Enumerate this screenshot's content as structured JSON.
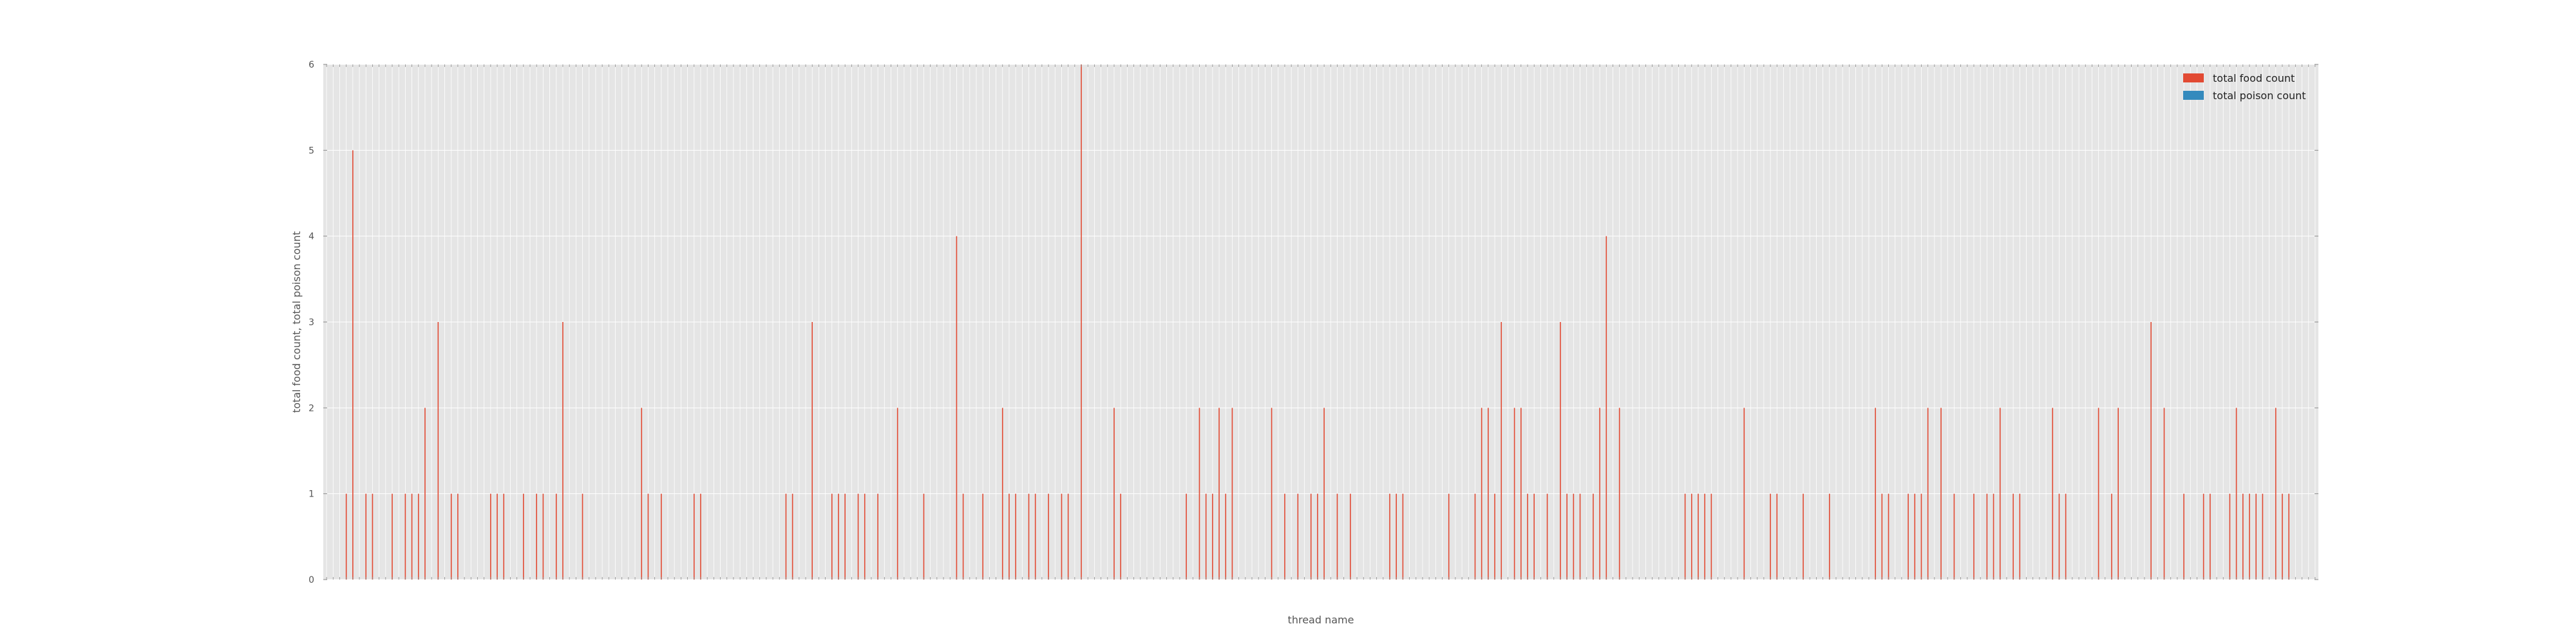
{
  "chart_data": {
    "type": "bar",
    "xlabel": "thread name",
    "ylabel": "total food count, total poison count",
    "ylim": [
      0,
      6
    ],
    "yticks": [
      "0",
      "1",
      "2",
      "3",
      "4",
      "5",
      "6"
    ],
    "grid": true,
    "legend_position": "top-right",
    "category_count": 304,
    "colors": {
      "food": "#E24A33",
      "poison": "#348ABD",
      "plot_bg": "#E5E5E5",
      "grid": "#ffffff",
      "text": "#555555"
    },
    "series": [
      {
        "name": "total food count",
        "color": "#E24A33",
        "nonzero": [
          [
            3,
            1
          ],
          [
            4,
            5
          ],
          [
            6,
            1
          ],
          [
            7,
            1
          ],
          [
            10,
            1
          ],
          [
            12,
            1
          ],
          [
            13,
            1
          ],
          [
            14,
            1
          ],
          [
            15,
            2
          ],
          [
            17,
            3
          ],
          [
            19,
            1
          ],
          [
            20,
            1
          ],
          [
            25,
            1
          ],
          [
            26,
            1
          ],
          [
            27,
            1
          ],
          [
            30,
            1
          ],
          [
            32,
            1
          ],
          [
            33,
            1
          ],
          [
            35,
            1
          ],
          [
            36,
            3
          ],
          [
            39,
            1
          ],
          [
            48,
            2
          ],
          [
            49,
            1
          ],
          [
            51,
            1
          ],
          [
            56,
            1
          ],
          [
            57,
            1
          ],
          [
            70,
            1
          ],
          [
            71,
            1
          ],
          [
            74,
            3
          ],
          [
            77,
            1
          ],
          [
            78,
            1
          ],
          [
            79,
            1
          ],
          [
            81,
            1
          ],
          [
            82,
            1
          ],
          [
            84,
            1
          ],
          [
            87,
            2
          ],
          [
            91,
            1
          ],
          [
            96,
            4
          ],
          [
            97,
            1
          ],
          [
            100,
            1
          ],
          [
            103,
            2
          ],
          [
            104,
            1
          ],
          [
            105,
            1
          ],
          [
            107,
            1
          ],
          [
            108,
            1
          ],
          [
            110,
            1
          ],
          [
            112,
            1
          ],
          [
            113,
            1
          ],
          [
            115,
            6
          ],
          [
            120,
            2
          ],
          [
            121,
            1
          ],
          [
            131,
            1
          ],
          [
            133,
            2
          ],
          [
            134,
            1
          ],
          [
            135,
            1
          ],
          [
            136,
            2
          ],
          [
            137,
            1
          ],
          [
            138,
            2
          ],
          [
            144,
            2
          ],
          [
            146,
            1
          ],
          [
            148,
            1
          ],
          [
            150,
            1
          ],
          [
            151,
            1
          ],
          [
            152,
            2
          ],
          [
            154,
            1
          ],
          [
            156,
            1
          ],
          [
            162,
            1
          ],
          [
            163,
            1
          ],
          [
            164,
            1
          ],
          [
            171,
            1
          ],
          [
            175,
            1
          ],
          [
            176,
            2
          ],
          [
            177,
            2
          ],
          [
            178,
            1
          ],
          [
            179,
            3
          ],
          [
            181,
            2
          ],
          [
            182,
            2
          ],
          [
            183,
            1
          ],
          [
            184,
            1
          ],
          [
            186,
            1
          ],
          [
            188,
            3
          ],
          [
            189,
            1
          ],
          [
            190,
            1
          ],
          [
            191,
            1
          ],
          [
            193,
            1
          ],
          [
            194,
            2
          ],
          [
            195,
            4
          ],
          [
            197,
            2
          ],
          [
            207,
            1
          ],
          [
            208,
            1
          ],
          [
            209,
            1
          ],
          [
            210,
            1
          ],
          [
            211,
            1
          ],
          [
            216,
            2
          ],
          [
            220,
            1
          ],
          [
            221,
            1
          ],
          [
            225,
            1
          ],
          [
            229,
            1
          ],
          [
            236,
            2
          ],
          [
            237,
            1
          ],
          [
            238,
            1
          ],
          [
            241,
            1
          ],
          [
            242,
            1
          ],
          [
            243,
            1
          ],
          [
            244,
            2
          ],
          [
            246,
            2
          ],
          [
            248,
            1
          ],
          [
            251,
            1
          ],
          [
            253,
            1
          ],
          [
            254,
            1
          ],
          [
            255,
            2
          ],
          [
            257,
            1
          ],
          [
            258,
            1
          ],
          [
            263,
            2
          ],
          [
            264,
            1
          ],
          [
            265,
            1
          ],
          [
            270,
            2
          ],
          [
            272,
            1
          ],
          [
            273,
            2
          ],
          [
            278,
            3
          ],
          [
            280,
            2
          ],
          [
            283,
            1
          ],
          [
            286,
            1
          ],
          [
            287,
            1
          ],
          [
            290,
            1
          ],
          [
            291,
            2
          ],
          [
            292,
            1
          ],
          [
            293,
            1
          ],
          [
            294,
            1
          ],
          [
            295,
            1
          ],
          [
            297,
            2
          ],
          [
            298,
            1
          ],
          [
            299,
            1
          ]
        ]
      },
      {
        "name": "total poison count",
        "color": "#348ABD",
        "nonzero": []
      }
    ],
    "legend": [
      {
        "label": "total food count",
        "color": "#E24A33"
      },
      {
        "label": "total poison count",
        "color": "#348ABD"
      }
    ]
  }
}
